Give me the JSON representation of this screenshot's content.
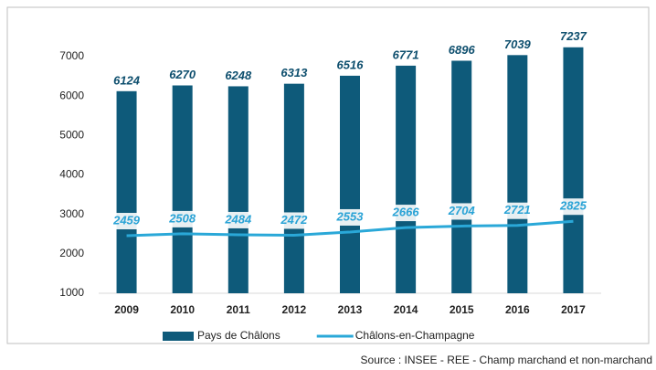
{
  "chart_data": {
    "type": "bar",
    "categories": [
      "2009",
      "2010",
      "2011",
      "2012",
      "2013",
      "2014",
      "2015",
      "2016",
      "2017"
    ],
    "series": [
      {
        "name": "Pays de Châlons",
        "type": "bar",
        "color": "#0e5a7a",
        "values": [
          6124,
          6270,
          6248,
          6313,
          6516,
          6771,
          6896,
          7039,
          7237
        ]
      },
      {
        "name": "Châlons-en-Champagne",
        "type": "line",
        "color": "#2aa8d8",
        "values": [
          2459,
          2508,
          2484,
          2472,
          2553,
          2666,
          2704,
          2721,
          2825
        ]
      }
    ],
    "ylim": [
      1000,
      7500
    ],
    "yticks": [
      1000,
      2000,
      3000,
      4000,
      5000,
      6000,
      7000
    ],
    "grid": false,
    "legend": "bottom",
    "source": "Source : INSEE - REE - Champ marchand et non-marchand"
  }
}
